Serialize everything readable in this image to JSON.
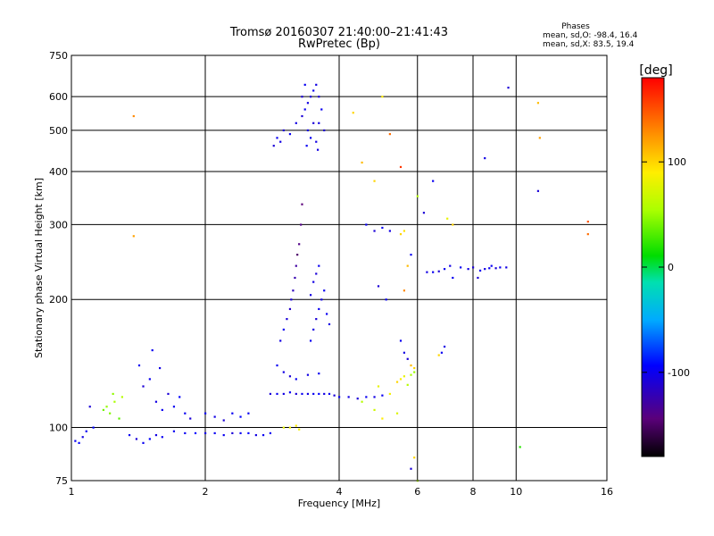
{
  "chart_data": {
    "type": "scatter",
    "title": "Tromsø 20160307 21:40:00–21:41:43",
    "subtitle": "RwPretec (Bp)",
    "xlabel": "Frequency [MHz]",
    "ylabel": "Stationary phase Virtual Height [km]",
    "x_scale": "log",
    "y_scale": "log",
    "xlim": [
      1,
      16
    ],
    "ylim": [
      75,
      750
    ],
    "x_ticks": [
      1,
      2,
      4,
      6,
      8,
      10,
      16
    ],
    "x_tick_labels": [
      "1",
      "2",
      "4",
      "6",
      "8",
      "10",
      "16"
    ],
    "y_ticks": [
      75,
      100,
      200,
      300,
      400,
      500,
      600,
      750
    ],
    "y_tick_labels": [
      "75",
      "100",
      "200",
      "300",
      "400",
      "500",
      "600",
      "750"
    ],
    "grid": true,
    "stats": {
      "heading": "Phases",
      "line_o": "mean, sd,O: -98.4, 16.4",
      "line_x": "mean, sd,X:  83.5, 19.4"
    },
    "colorbar": {
      "label": "[deg]",
      "range": [
        -180,
        180
      ],
      "ticks": [
        100,
        0,
        -100
      ],
      "tick_labels": [
        "100",
        "0",
        "-100"
      ]
    },
    "series": [
      {
        "points": [
          [
            1.02,
            93,
            -100
          ],
          [
            1.04,
            92,
            -95
          ],
          [
            1.06,
            95,
            -105
          ],
          [
            1.08,
            98,
            -100
          ],
          [
            1.1,
            112,
            -110
          ],
          [
            1.12,
            100,
            -95
          ],
          [
            1.18,
            110,
            40
          ],
          [
            1.2,
            112,
            50
          ],
          [
            1.22,
            108,
            45
          ],
          [
            1.25,
            115,
            55
          ],
          [
            1.28,
            105,
            35
          ],
          [
            1.3,
            118,
            60
          ],
          [
            1.24,
            120,
            48
          ],
          [
            1.38,
            540,
            130
          ],
          [
            1.38,
            282,
            120
          ],
          [
            1.35,
            96,
            -100
          ],
          [
            1.4,
            94,
            -110
          ],
          [
            1.45,
            92,
            -100
          ],
          [
            1.5,
            94,
            -95
          ],
          [
            1.55,
            96,
            -105
          ],
          [
            1.6,
            95,
            -100
          ],
          [
            1.42,
            140,
            -100
          ],
          [
            1.45,
            125,
            -110
          ],
          [
            1.5,
            130,
            -100
          ],
          [
            1.55,
            115,
            -105
          ],
          [
            1.6,
            110,
            -100
          ],
          [
            1.65,
            120,
            -110
          ],
          [
            1.7,
            112,
            -100
          ],
          [
            1.75,
            118,
            -95
          ],
          [
            1.8,
            108,
            -100
          ],
          [
            1.85,
            105,
            -110
          ],
          [
            1.52,
            152,
            -100
          ],
          [
            1.58,
            138,
            -105
          ],
          [
            1.7,
            98,
            -100
          ],
          [
            1.8,
            97,
            -100
          ],
          [
            1.9,
            97,
            -95
          ],
          [
            2.0,
            97,
            -105
          ],
          [
            2.1,
            97,
            -100
          ],
          [
            2.2,
            96,
            -100
          ],
          [
            2.3,
            97,
            -110
          ],
          [
            2.4,
            97,
            -100
          ],
          [
            2.5,
            97,
            -95
          ],
          [
            2.6,
            96,
            -105
          ],
          [
            2.7,
            96,
            -100
          ],
          [
            2.8,
            97,
            -100
          ],
          [
            2.0,
            108,
            -100
          ],
          [
            2.1,
            106,
            -105
          ],
          [
            2.2,
            104,
            -110
          ],
          [
            2.3,
            108,
            -100
          ],
          [
            2.4,
            106,
            -95
          ],
          [
            2.5,
            108,
            -100
          ],
          [
            2.8,
            120,
            -110
          ],
          [
            2.9,
            120,
            -100
          ],
          [
            3.0,
            120,
            -105
          ],
          [
            3.1,
            121,
            -100
          ],
          [
            3.2,
            120,
            -110
          ],
          [
            3.3,
            120,
            -100
          ],
          [
            3.4,
            120,
            -105
          ],
          [
            3.5,
            120,
            -100
          ],
          [
            3.6,
            120,
            -95
          ],
          [
            3.7,
            120,
            -105
          ],
          [
            3.8,
            120,
            -100
          ],
          [
            3.9,
            119,
            -110
          ],
          [
            2.9,
            140,
            -100
          ],
          [
            3.0,
            135,
            -105
          ],
          [
            3.1,
            132,
            -110
          ],
          [
            3.2,
            130,
            -100
          ],
          [
            3.4,
            133,
            -105
          ],
          [
            3.6,
            134,
            -100
          ],
          [
            2.95,
            160,
            -105
          ],
          [
            3.0,
            170,
            -100
          ],
          [
            3.05,
            180,
            -110
          ],
          [
            3.1,
            190,
            -115
          ],
          [
            3.15,
            210,
            -120
          ],
          [
            3.2,
            240,
            -130
          ],
          [
            3.25,
            270,
            -140
          ],
          [
            3.28,
            300,
            -140
          ],
          [
            3.3,
            335,
            -145
          ],
          [
            3.22,
            255,
            -150
          ],
          [
            3.18,
            225,
            -125
          ],
          [
            3.12,
            200,
            -110
          ],
          [
            3.45,
            160,
            -100
          ],
          [
            3.5,
            170,
            -105
          ],
          [
            3.55,
            180,
            -110
          ],
          [
            3.6,
            190,
            -100
          ],
          [
            3.65,
            200,
            -105
          ],
          [
            3.7,
            210,
            -100
          ],
          [
            3.5,
            220,
            -105
          ],
          [
            3.55,
            230,
            -110
          ],
          [
            3.6,
            240,
            -100
          ],
          [
            3.45,
            205,
            -105
          ],
          [
            3.75,
            185,
            -100
          ],
          [
            3.8,
            175,
            -105
          ],
          [
            3.0,
            100,
            80
          ],
          [
            3.1,
            100,
            85
          ],
          [
            3.2,
            101,
            90
          ],
          [
            3.25,
            99,
            85
          ],
          [
            2.85,
            460,
            -110
          ],
          [
            2.9,
            480,
            -100
          ],
          [
            2.95,
            470,
            -105
          ],
          [
            3.0,
            500,
            -110
          ],
          [
            3.1,
            490,
            -100
          ],
          [
            3.2,
            520,
            -105
          ],
          [
            3.3,
            540,
            -110
          ],
          [
            3.35,
            560,
            -100
          ],
          [
            3.4,
            580,
            -105
          ],
          [
            3.45,
            600,
            -110
          ],
          [
            3.5,
            620,
            -100
          ],
          [
            3.55,
            640,
            -105
          ],
          [
            3.6,
            600,
            -110
          ],
          [
            3.65,
            560,
            -100
          ],
          [
            3.4,
            500,
            -105
          ],
          [
            3.5,
            520,
            -110
          ],
          [
            3.45,
            480,
            -100
          ],
          [
            3.55,
            470,
            -105
          ],
          [
            3.3,
            600,
            -110
          ],
          [
            3.35,
            640,
            -100
          ],
          [
            3.6,
            520,
            -105
          ],
          [
            3.7,
            500,
            -110
          ],
          [
            3.38,
            460,
            -100
          ],
          [
            3.58,
            450,
            -105
          ],
          [
            4.0,
            118,
            -100
          ],
          [
            4.2,
            118,
            -105
          ],
          [
            4.4,
            117,
            -110
          ],
          [
            4.6,
            118,
            -100
          ],
          [
            4.8,
            118,
            -105
          ],
          [
            5.0,
            119,
            -100
          ],
          [
            4.5,
            115,
            60
          ],
          [
            4.8,
            110,
            70
          ],
          [
            4.9,
            125,
            80
          ],
          [
            5.0,
            105,
            90
          ],
          [
            5.2,
            120,
            85
          ],
          [
            5.4,
            108,
            75
          ],
          [
            4.3,
            550,
            100
          ],
          [
            4.5,
            420,
            110
          ],
          [
            4.8,
            380,
            100
          ],
          [
            5.0,
            600,
            90
          ],
          [
            5.2,
            490,
            140
          ],
          [
            5.5,
            410,
            160
          ],
          [
            4.6,
            300,
            -100
          ],
          [
            4.8,
            290,
            -110
          ],
          [
            5.0,
            295,
            -100
          ],
          [
            5.2,
            290,
            -105
          ],
          [
            5.5,
            285,
            100
          ],
          [
            5.6,
            290,
            95
          ],
          [
            5.7,
            240,
            110
          ],
          [
            5.8,
            255,
            -100
          ],
          [
            5.6,
            210,
            130
          ],
          [
            4.9,
            215,
            -110
          ],
          [
            5.1,
            200,
            -100
          ],
          [
            5.5,
            160,
            -100
          ],
          [
            5.6,
            150,
            -105
          ],
          [
            5.7,
            145,
            -110
          ],
          [
            5.8,
            140,
            110
          ],
          [
            5.9,
            138,
            100
          ],
          [
            5.4,
            128,
            100
          ],
          [
            5.5,
            130,
            90
          ],
          [
            5.6,
            132,
            80
          ],
          [
            5.7,
            126,
            60
          ],
          [
            5.8,
            133,
            55
          ],
          [
            5.9,
            135,
            50
          ],
          [
            5.8,
            80,
            -110
          ],
          [
            5.9,
            85,
            100
          ],
          [
            6.0,
            75,
            60
          ],
          [
            6.0,
            350,
            60
          ],
          [
            6.2,
            320,
            -110
          ],
          [
            6.5,
            380,
            -100
          ],
          [
            7.0,
            310,
            80
          ],
          [
            7.2,
            300,
            100
          ],
          [
            6.3,
            232,
            -105
          ],
          [
            6.5,
            232,
            -100
          ],
          [
            6.7,
            233,
            -110
          ],
          [
            6.9,
            236,
            -100
          ],
          [
            7.1,
            240,
            -105
          ],
          [
            7.2,
            225,
            -100
          ],
          [
            7.5,
            238,
            -100
          ],
          [
            7.8,
            236,
            -105
          ],
          [
            8.0,
            238,
            -110
          ],
          [
            8.3,
            234,
            -100
          ],
          [
            8.5,
            236,
            -105
          ],
          [
            8.7,
            237,
            -100
          ],
          [
            9.0,
            237,
            -110
          ],
          [
            9.2,
            238,
            -100
          ],
          [
            9.5,
            238,
            -105
          ],
          [
            8.2,
            225,
            -110
          ],
          [
            8.8,
            240,
            -100
          ],
          [
            6.8,
            150,
            -100
          ],
          [
            6.9,
            155,
            -105
          ],
          [
            6.7,
            148,
            100
          ],
          [
            8.5,
            430,
            -105
          ],
          [
            9.6,
            630,
            -110
          ],
          [
            11.2,
            580,
            110
          ],
          [
            11.3,
            480,
            120
          ],
          [
            11.2,
            360,
            -110
          ],
          [
            14.5,
            305,
            150
          ],
          [
            14.5,
            285,
            140
          ],
          [
            10.2,
            90,
            20
          ]
        ]
      }
    ]
  }
}
